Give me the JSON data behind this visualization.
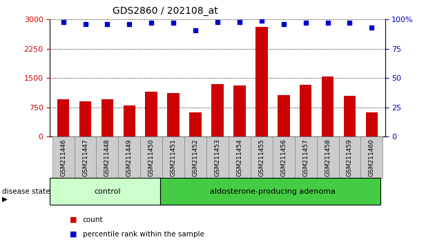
{
  "title": "GDS2860 / 202108_at",
  "samples": [
    "GSM211446",
    "GSM211447",
    "GSM211448",
    "GSM211449",
    "GSM211450",
    "GSM211451",
    "GSM211452",
    "GSM211453",
    "GSM211454",
    "GSM211455",
    "GSM211456",
    "GSM211457",
    "GSM211458",
    "GSM211459",
    "GSM211460"
  ],
  "counts": [
    950,
    900,
    960,
    800,
    1150,
    1120,
    620,
    1350,
    1310,
    2820,
    1070,
    1330,
    1540,
    1040,
    620
  ],
  "percentile_ranks": [
    98,
    96,
    96,
    96,
    97,
    97,
    91,
    98,
    98,
    99,
    96,
    97,
    97,
    97,
    93
  ],
  "control_count": 5,
  "adenoma_count": 10,
  "ylim_left": [
    0,
    3000
  ],
  "ylim_right": [
    0,
    100
  ],
  "yticks_left": [
    0,
    750,
    1500,
    2250,
    3000
  ],
  "yticks_right": [
    0,
    25,
    50,
    75,
    100
  ],
  "bar_color": "#cc0000",
  "dot_color": "#0000cc",
  "control_bg": "#ccffcc",
  "adenoma_bg": "#44cc44",
  "tick_label_bg": "#cccccc",
  "grid_color": "#000000",
  "title_fontsize": 10,
  "axis_label_fontsize": 8,
  "disease_state_label": "disease state",
  "control_label": "control",
  "adenoma_label": "aldosterone-producing adenoma",
  "legend_count_label": "count",
  "legend_pct_label": "percentile rank within the sample"
}
